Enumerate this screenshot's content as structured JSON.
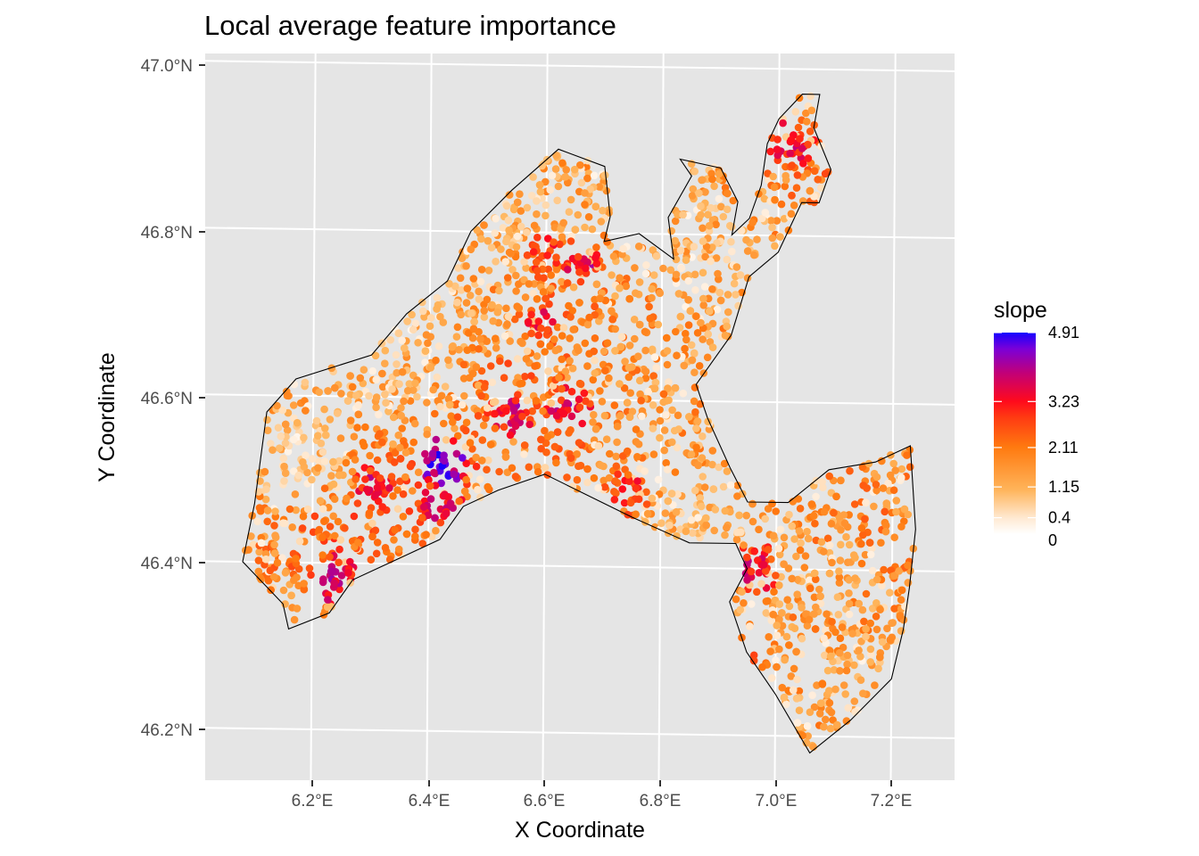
{
  "title": "Local average feature importance",
  "x_axis": {
    "label": "X Coordinate",
    "ticks": [
      "6.2°E",
      "6.4°E",
      "6.6°E",
      "6.8°E",
      "7.0°E",
      "7.2°E"
    ],
    "tick_values": [
      6.2,
      6.4,
      6.6,
      6.8,
      7.0,
      7.2
    ],
    "range": [
      6.01,
      7.31
    ]
  },
  "y_axis": {
    "label": "Y Coordinate",
    "ticks": [
      "47.0°N",
      "46.8°N",
      "46.6°N",
      "46.4°N",
      "46.2°N"
    ],
    "tick_values": [
      47.0,
      46.8,
      46.6,
      46.4,
      46.2
    ],
    "range": [
      46.142,
      47.011
    ]
  },
  "legend": {
    "title": "slope",
    "labels": [
      "4.91",
      "3.23",
      "2.11",
      "1.15",
      "0.4",
      "0"
    ],
    "values": [
      4.91,
      3.23,
      2.11,
      1.15,
      0.4,
      0
    ],
    "gradient_colors": [
      "#ffffff",
      "#ffd5a8",
      "#ff9a1f",
      "#ff5a0a",
      "#ff0f1a",
      "#c80070",
      "#8a00d0",
      "#1a00ff"
    ]
  },
  "colors": {
    "panel_bg": "#e5e5e5",
    "grid": "#ffffff",
    "outline": "#000000"
  },
  "chart_data": {
    "type": "scatter",
    "title": "Local average feature importance",
    "xlabel": "X Coordinate",
    "ylabel": "Y Coordinate",
    "xlim": [
      6.01,
      7.31
    ],
    "ylim": [
      46.142,
      47.011
    ],
    "color_variable": "slope",
    "color_range": [
      0,
      4.91
    ],
    "hotspots": [
      {
        "lon": 6.425,
        "lat": 46.522,
        "slope": 4.9
      },
      {
        "lon": 6.42,
        "lat": 46.47,
        "slope": 4.0
      },
      {
        "lon": 6.24,
        "lat": 46.38,
        "slope": 4.2
      },
      {
        "lon": 6.54,
        "lat": 46.585,
        "slope": 4.0
      },
      {
        "lon": 6.64,
        "lat": 46.59,
        "slope": 3.9
      },
      {
        "lon": 6.665,
        "lat": 46.765,
        "slope": 3.9
      },
      {
        "lon": 7.02,
        "lat": 46.91,
        "slope": 3.9
      },
      {
        "lon": 6.965,
        "lat": 46.4,
        "slope": 3.9
      },
      {
        "lon": 6.31,
        "lat": 46.495,
        "slope": 3.8
      },
      {
        "lon": 6.59,
        "lat": 46.69,
        "slope": 3.6
      },
      {
        "lon": 6.6,
        "lat": 46.775,
        "slope": 3.4
      },
      {
        "lon": 6.74,
        "lat": 46.49,
        "slope": 3.4
      },
      {
        "lon": 6.945,
        "lat": 46.282,
        "slope": 3.4
      }
    ],
    "regions": [
      {
        "lon": 6.33,
        "lat": 46.47,
        "slope": 2.6
      },
      {
        "lon": 6.23,
        "lat": 46.44,
        "slope": 2.9
      },
      {
        "lon": 6.45,
        "lat": 46.51,
        "slope": 2.8
      },
      {
        "lon": 6.56,
        "lat": 46.64,
        "slope": 2.7
      },
      {
        "lon": 6.6,
        "lat": 46.73,
        "slope": 2.4
      },
      {
        "lon": 6.66,
        "lat": 46.55,
        "slope": 2.2
      },
      {
        "lon": 6.52,
        "lat": 46.6,
        "slope": 2.0
      },
      {
        "lon": 7.05,
        "lat": 46.87,
        "slope": 2.2
      },
      {
        "lon": 7.05,
        "lat": 46.38,
        "slope": 1.9
      },
      {
        "lon": 7.15,
        "lat": 46.42,
        "slope": 1.8
      },
      {
        "lon": 7.2,
        "lat": 46.48,
        "slope": 2.0
      },
      {
        "lon": 6.78,
        "lat": 46.66,
        "slope": 1.6
      },
      {
        "lon": 6.82,
        "lat": 46.55,
        "slope": 1.5
      },
      {
        "lon": 6.45,
        "lat": 46.78,
        "slope": 1.2
      },
      {
        "lon": 6.35,
        "lat": 46.62,
        "slope": 1.0
      },
      {
        "lon": 6.18,
        "lat": 46.52,
        "slope": 0.3
      },
      {
        "lon": 6.4,
        "lat": 46.7,
        "slope": 0.4
      },
      {
        "lon": 6.9,
        "lat": 46.45,
        "slope": 0.7
      },
      {
        "lon": 7.1,
        "lat": 46.3,
        "slope": 1.3
      },
      {
        "lon": 6.26,
        "lat": 46.335,
        "slope": 1.5
      },
      {
        "lon": 6.55,
        "lat": 46.82,
        "slope": 0.9
      },
      {
        "lon": 6.9,
        "lat": 46.78,
        "slope": 1.0
      }
    ],
    "boundary": [
      [
        6.12,
        46.58
      ],
      [
        6.17,
        46.62
      ],
      [
        6.3,
        46.65
      ],
      [
        6.36,
        46.7
      ],
      [
        6.43,
        46.74
      ],
      [
        6.47,
        46.8
      ],
      [
        6.54,
        46.85
      ],
      [
        6.62,
        46.9
      ],
      [
        6.7,
        46.88
      ],
      [
        6.71,
        46.82
      ],
      [
        6.7,
        46.79
      ],
      [
        6.76,
        46.8
      ],
      [
        6.82,
        46.77
      ],
      [
        6.81,
        46.82
      ],
      [
        6.85,
        46.87
      ],
      [
        6.83,
        46.89
      ],
      [
        6.9,
        46.88
      ],
      [
        6.93,
        46.84
      ],
      [
        6.92,
        46.8
      ],
      [
        6.95,
        46.82
      ],
      [
        6.97,
        46.86
      ],
      [
        6.98,
        46.91
      ],
      [
        7.0,
        46.94
      ],
      [
        7.04,
        46.97
      ],
      [
        7.07,
        46.97
      ],
      [
        7.06,
        46.93
      ],
      [
        7.09,
        46.88
      ],
      [
        7.07,
        46.84
      ],
      [
        7.04,
        46.84
      ],
      [
        7.0,
        46.78
      ],
      [
        6.95,
        46.75
      ],
      [
        6.92,
        46.68
      ],
      [
        6.86,
        46.62
      ],
      [
        6.88,
        46.58
      ],
      [
        6.92,
        46.52
      ],
      [
        6.95,
        46.48
      ],
      [
        7.02,
        46.48
      ],
      [
        7.09,
        46.52
      ],
      [
        7.17,
        46.53
      ],
      [
        7.23,
        46.55
      ],
      [
        7.24,
        46.45
      ],
      [
        7.23,
        46.38
      ],
      [
        7.22,
        46.33
      ],
      [
        7.2,
        46.27
      ],
      [
        7.13,
        46.22
      ],
      [
        7.06,
        46.18
      ],
      [
        7.0,
        46.25
      ],
      [
        6.95,
        46.3
      ],
      [
        6.92,
        46.36
      ],
      [
        6.95,
        46.4
      ],
      [
        6.93,
        46.43
      ],
      [
        6.85,
        46.43
      ],
      [
        6.75,
        46.46
      ],
      [
        6.66,
        46.49
      ],
      [
        6.6,
        46.51
      ],
      [
        6.52,
        46.49
      ],
      [
        6.46,
        46.47
      ],
      [
        6.42,
        46.43
      ],
      [
        6.36,
        46.41
      ],
      [
        6.27,
        46.38
      ],
      [
        6.23,
        46.34
      ],
      [
        6.16,
        46.32
      ],
      [
        6.15,
        46.35
      ],
      [
        6.08,
        46.4
      ],
      [
        6.1,
        46.47
      ],
      [
        6.12,
        46.58
      ]
    ]
  }
}
